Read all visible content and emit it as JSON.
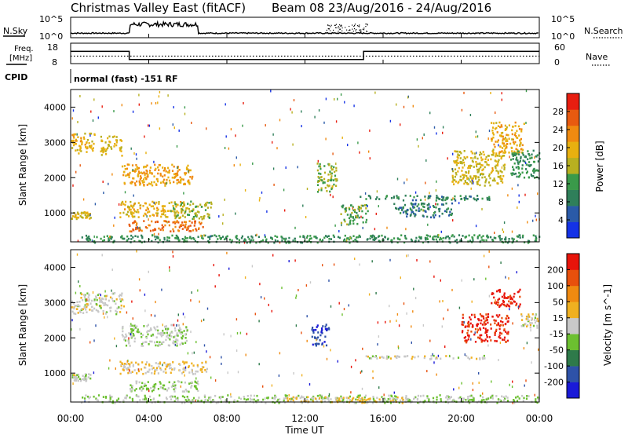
{
  "header": {
    "title": "Christmas Valley East (fitACF)",
    "beam_date": "Beam 08  23/Aug/2016 - 24/Aug/2016"
  },
  "top_panels": {
    "nsky_label": "N.Sky",
    "nsky_ticks": [
      "10^5",
      "10^0"
    ],
    "nsearch_label": "N.Search",
    "nsearch_ticks": [
      "10^5",
      "10^0"
    ],
    "freq_label_1": "Freq.",
    "freq_label_2": "[MHz]",
    "freq_ticks": [
      "18",
      "8"
    ],
    "nave_label": "Nave",
    "nave_ticks": [
      "60",
      "0"
    ],
    "cpid_label": "CPID",
    "cpid_text": "normal (fast) -151 RF"
  },
  "panels": [
    {
      "id": "power",
      "ylabel": "Slant Range [km]",
      "yticks": [
        "1000",
        "2000",
        "3000",
        "4000"
      ],
      "colorbar_label": "Power [dB]",
      "colorbar_ticks": [
        "4",
        "8",
        "12",
        "16",
        "20",
        "24",
        "28"
      ],
      "colors": [
        "#1432e6",
        "#2a5aa8",
        "#2f7f5a",
        "#3a9a4a",
        "#b8b020",
        "#e8b010",
        "#f08a10",
        "#e85a10",
        "#e81e10"
      ]
    },
    {
      "id": "velocity",
      "ylabel": "Slant Range [km]",
      "yticks": [
        "1000",
        "2000",
        "3000",
        "4000"
      ],
      "colorbar_label": "Velocity [m s^-1]",
      "colorbar_ticks": [
        "200",
        "100",
        "50",
        "15",
        "-15",
        "-50",
        "-100",
        "-200"
      ],
      "colors": [
        "#1a1ad8",
        "#2e52a8",
        "#2e7a4a",
        "#6cc030",
        "#c8c8c8",
        "#f0b020",
        "#f08a10",
        "#e8500c",
        "#e8140a"
      ]
    }
  ],
  "xaxis": {
    "label": "Time UT",
    "ticks": [
      "00:00",
      "04:00",
      "08:00",
      "12:00",
      "16:00",
      "20:00",
      "00:00"
    ]
  },
  "chart_data": [
    {
      "type": "line",
      "name": "N.Sky / N.Search",
      "x_unit": "hours UT",
      "xlim": [
        0,
        24
      ],
      "segments": [
        {
          "x": [
            0,
            3
          ],
          "nsky_level": "low"
        },
        {
          "x": [
            3,
            6.5
          ],
          "nsky_level": "high"
        },
        {
          "x": [
            6.5,
            15
          ],
          "nsky_level": "low"
        },
        {
          "x": [
            15,
            24
          ],
          "nsky_level": "low"
        }
      ]
    },
    {
      "type": "line",
      "name": "Freq. / Nave",
      "x_unit": "hours UT",
      "xlim": [
        0,
        24
      ],
      "freq_mhz": [
        {
          "x": [
            0,
            3
          ],
          "value": 14
        },
        {
          "x": [
            3,
            15
          ],
          "value": 10
        },
        {
          "x": [
            15,
            24
          ],
          "value": 14
        }
      ],
      "nave": [
        {
          "x": [
            0,
            3
          ],
          "value": 22
        },
        {
          "x": [
            3,
            15
          ],
          "value": 22
        },
        {
          "x": [
            15,
            24
          ],
          "value": 22
        }
      ]
    },
    {
      "type": "heatmap",
      "title": "Power [dB]",
      "xlabel": "Time UT",
      "ylabel": "Slant Range [km]",
      "xlim": [
        0,
        24
      ],
      "ylim": [
        180,
        4500
      ],
      "zlim": [
        0,
        30
      ],
      "regions": [
        {
          "t0": 0.0,
          "t1": 1.2,
          "r0": 2700,
          "r1": 3300,
          "value": 18
        },
        {
          "t0": 1.5,
          "t1": 2.6,
          "r0": 2650,
          "r1": 3200,
          "value": 17
        },
        {
          "t0": 0.0,
          "t1": 1.0,
          "r0": 850,
          "r1": 1050,
          "value": 16
        },
        {
          "t0": 2.6,
          "t1": 6.2,
          "r0": 1800,
          "r1": 2400,
          "value": 20
        },
        {
          "t0": 2.5,
          "t1": 5.8,
          "r0": 900,
          "r1": 1350,
          "value": 18
        },
        {
          "t0": 2.9,
          "t1": 6.8,
          "r0": 500,
          "r1": 800,
          "value": 24
        },
        {
          "t0": 5.2,
          "t1": 7.2,
          "r0": 850,
          "r1": 1350,
          "value": 14
        },
        {
          "t0": 0.5,
          "t1": 24.0,
          "r0": 180,
          "r1": 400,
          "value": 10
        },
        {
          "t0": 12.6,
          "t1": 13.6,
          "r0": 1600,
          "r1": 2450,
          "value": 14
        },
        {
          "t0": 13.8,
          "t1": 15.2,
          "r0": 700,
          "r1": 1250,
          "value": 12
        },
        {
          "t0": 14.8,
          "t1": 21.5,
          "r0": 1380,
          "r1": 1520,
          "value": 9
        },
        {
          "t0": 19.5,
          "t1": 22.2,
          "r0": 1800,
          "r1": 2800,
          "value": 16
        },
        {
          "t0": 21.5,
          "t1": 23.2,
          "r0": 2700,
          "r1": 3600,
          "value": 19
        },
        {
          "t0": 16.5,
          "t1": 19.5,
          "r0": 900,
          "r1": 1300,
          "value": 8
        },
        {
          "t0": 22.5,
          "t1": 24.0,
          "r0": 2000,
          "r1": 2800,
          "value": 10
        }
      ]
    },
    {
      "type": "heatmap",
      "title": "Velocity [m s^-1]",
      "xlabel": "Time UT",
      "ylabel": "Slant Range [km]",
      "xlim": [
        0,
        24
      ],
      "ylim": [
        180,
        4500
      ],
      "zlim": [
        -250,
        250
      ],
      "regions": [
        {
          "t0": 0.0,
          "t1": 2.7,
          "r0": 2700,
          "r1": 3300,
          "value": 0
        },
        {
          "t0": 0.0,
          "t1": 1.0,
          "r0": 800,
          "r1": 1000,
          "value": 0
        },
        {
          "t0": 2.6,
          "t1": 6.0,
          "r0": 1800,
          "r1": 2400,
          "value": -20
        },
        {
          "t0": 2.5,
          "t1": 7.0,
          "r0": 1000,
          "r1": 1350,
          "value": 30
        },
        {
          "t0": 3.0,
          "t1": 6.5,
          "r0": 500,
          "r1": 800,
          "value": -40
        },
        {
          "t0": 0.5,
          "t1": 24.0,
          "r0": 180,
          "r1": 400,
          "value": -30
        },
        {
          "t0": 11.0,
          "t1": 17.0,
          "r0": 180,
          "r1": 350,
          "value": 40
        },
        {
          "t0": 12.3,
          "t1": 13.2,
          "r0": 1800,
          "r1": 2400,
          "value": -180
        },
        {
          "t0": 14.5,
          "t1": 21.5,
          "r0": 1420,
          "r1": 1520,
          "value": 0
        },
        {
          "t0": 20.0,
          "t1": 22.4,
          "r0": 1900,
          "r1": 2700,
          "value": 210
        },
        {
          "t0": 21.5,
          "t1": 23.0,
          "r0": 2900,
          "r1": 3400,
          "value": 220
        },
        {
          "t0": 23.0,
          "t1": 24.0,
          "r0": 2300,
          "r1": 2700,
          "value": 0
        }
      ]
    }
  ]
}
